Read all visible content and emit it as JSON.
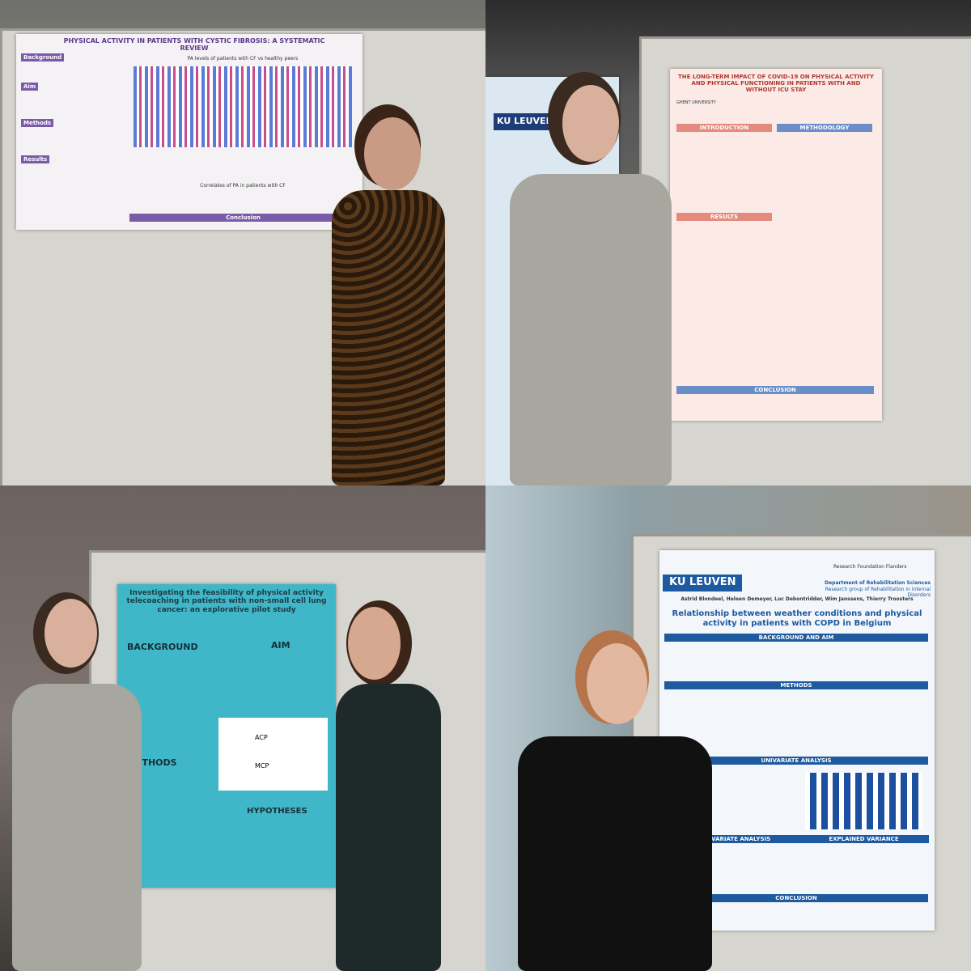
{
  "panels": [
    {
      "title": "PHYSICAL ACTIVITY IN PATIENTS WITH CYSTIC FIBROSIS: A SYSTEMATIC REVIEW",
      "sections": [
        "Background",
        "Aim",
        "Methods",
        "Results",
        "PA levels of patients with CF vs healthy peers",
        "Correlates of PA in patients with CF",
        "Conclusion"
      ]
    },
    {
      "title": "THE LONG-TERM IMPACT OF COVID-19 ON PHYSICAL ACTIVITY AND PHYSICAL FUNCTIONING IN PATIENTS WITH AND WITHOUT ICU STAY",
      "logo_left": "GHENT UNIVERSITY",
      "neighbor_logo": "KU LEUVEN",
      "sections": [
        "INTRODUCTION",
        "METHODOLOGY",
        "RESULTS",
        "CONCLUSION"
      ]
    },
    {
      "title": "Investigating the feasibility of physical activity telecoaching in patients with non-small cell lung cancer: an explorative pilot study",
      "sections": [
        "BACKGROUND",
        "AIM",
        "METHODS",
        "HYPOTHESES"
      ],
      "diagram": [
        "ACP",
        "MCP"
      ]
    },
    {
      "logo": "KU LEUVEN",
      "funder": "Research Foundation Flanders",
      "department": "Department of Rehabilitation Sciences",
      "group": "Research group of Rehabilitation in Internal Disorders",
      "authors": "Astrid Blondeel, Heleen Demeyer, Luc Debontridder, Wim Janssens, Thierry Troosters",
      "title": "Relationship between weather conditions and physical activity in patients with COPD in Belgium",
      "sections": [
        "BACKGROUND AND AIM",
        "METHODS",
        "UNIVARIATE ANALYSIS",
        "MULTIVARIATE ANALYSIS",
        "EXPLAINED VARIANCE",
        "CONCLUSION"
      ]
    }
  ]
}
